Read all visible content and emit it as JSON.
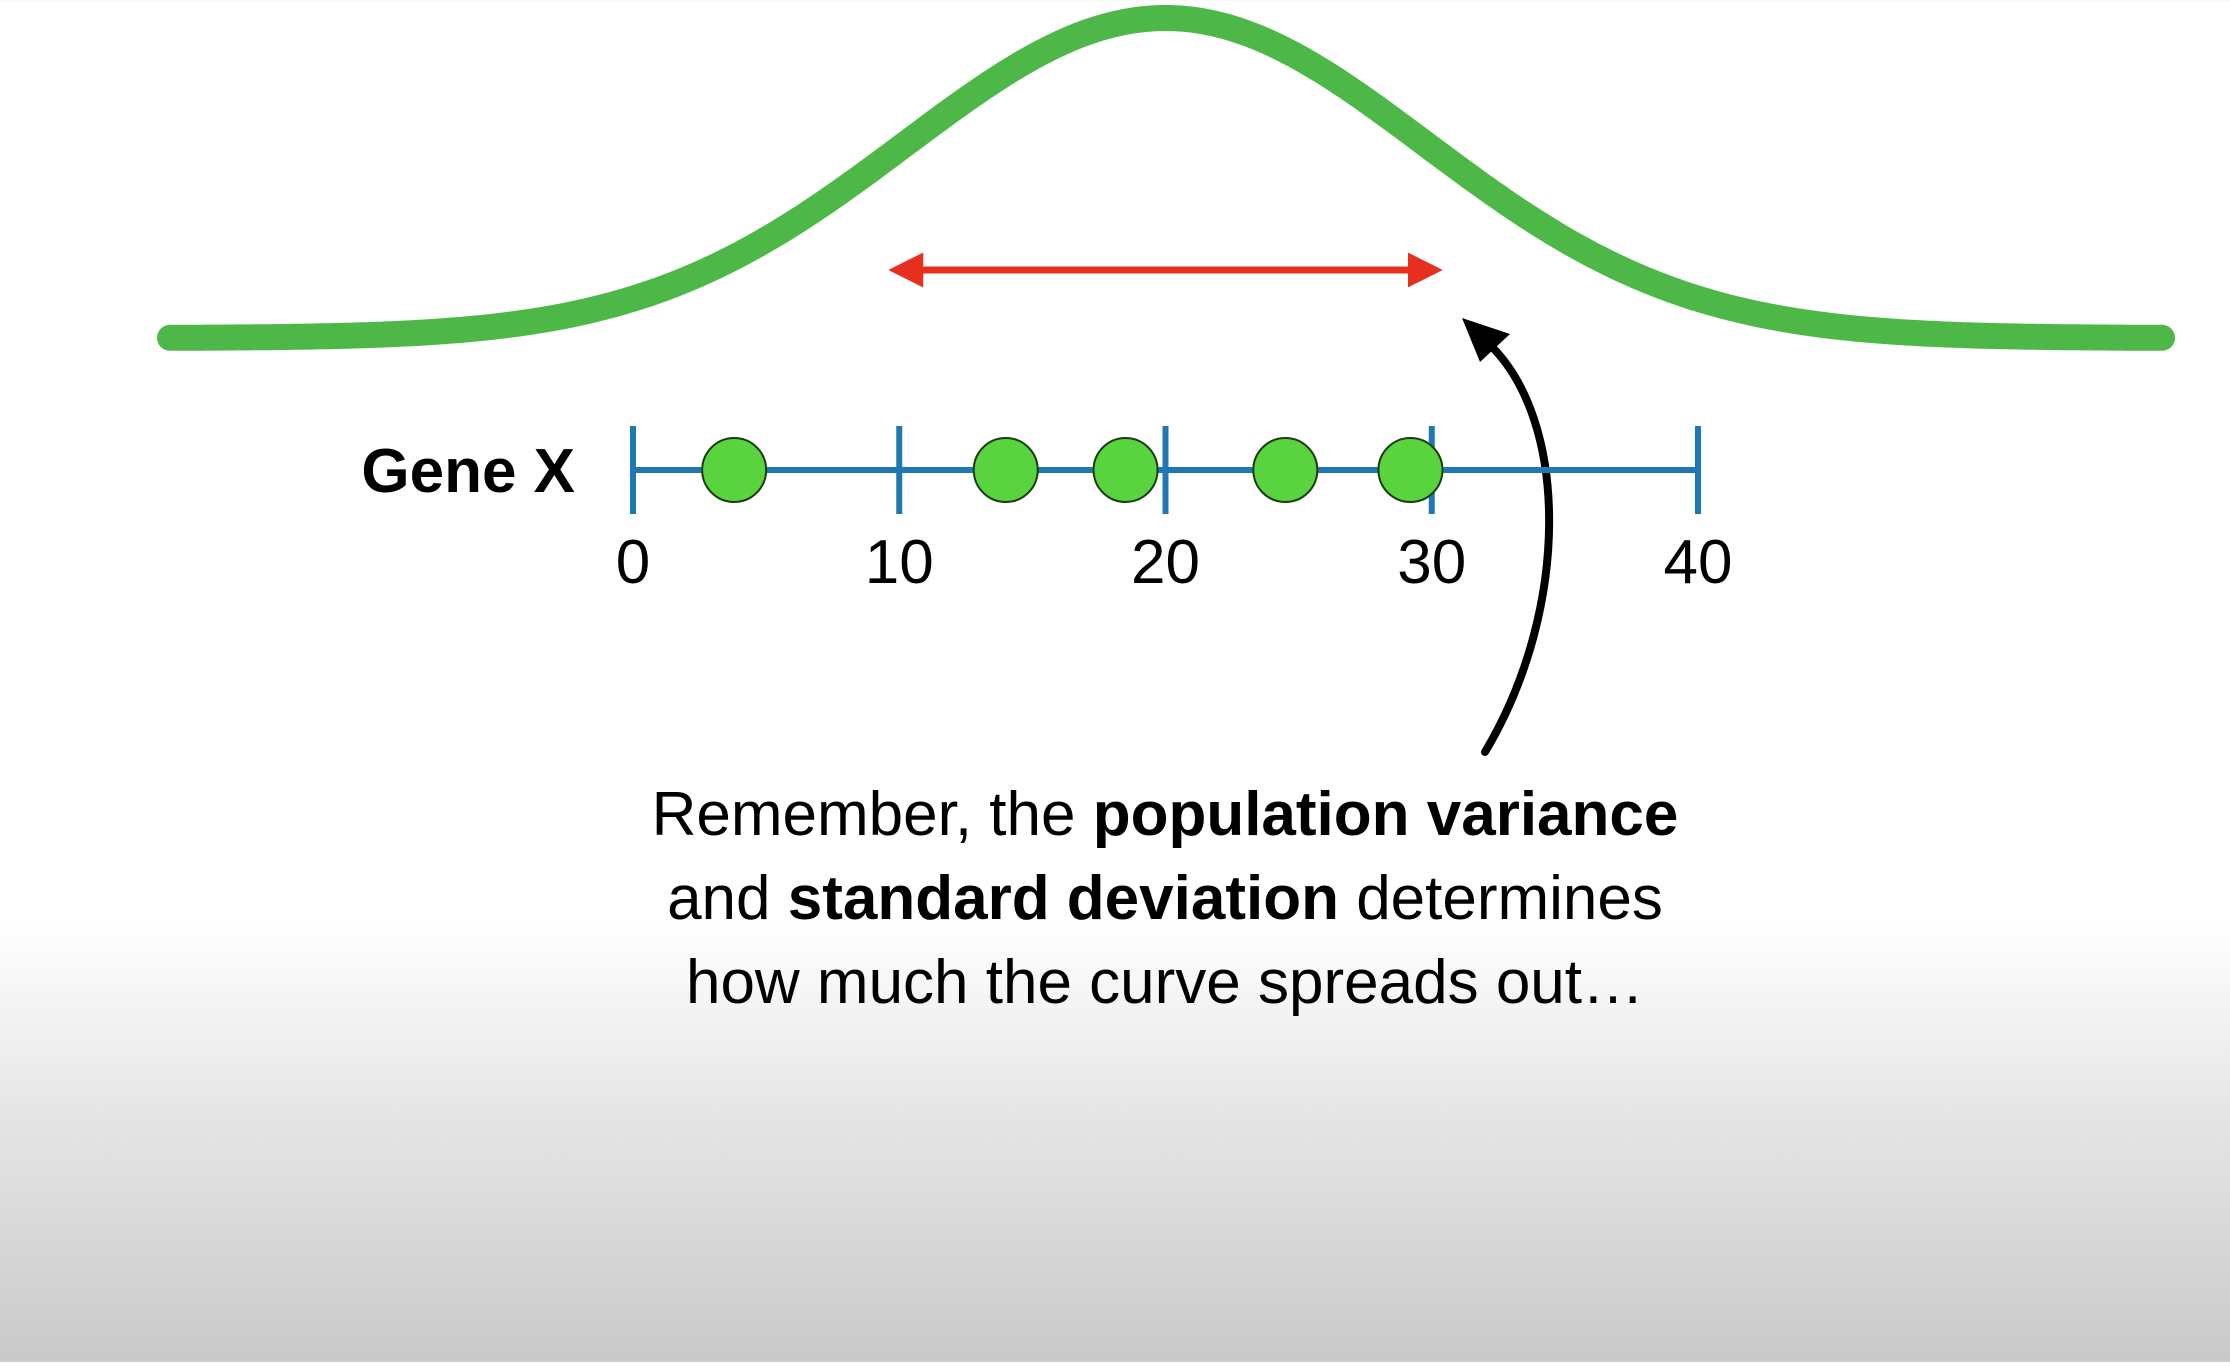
{
  "gene_label": "Gene X",
  "axis": {
    "min": 0,
    "max": 40,
    "ticks": [
      0,
      10,
      20,
      30,
      40
    ],
    "tick_labels": [
      "0",
      "10",
      "20",
      "30",
      "40"
    ]
  },
  "data_points": [
    3.8,
    14,
    18.5,
    24.5,
    29.2
  ],
  "normal_curve": {
    "mean": 20,
    "spread_arrow": {
      "from": 10,
      "to": 30
    }
  },
  "caption": {
    "line1_pre": "Remember, the ",
    "line1_bold": "population variance",
    "line2_pre": "and ",
    "line2_bold": "standard deviation",
    "line2_post": " determines",
    "line3": "how much the curve spreads out…"
  },
  "colors": {
    "curve": "#4db848",
    "axis": "#1f78b4",
    "points_fill": "#59d43f",
    "points_stroke": "#1a3d12",
    "spread_arrow": "#e6301d",
    "pointer_arrow": "#000000"
  }
}
